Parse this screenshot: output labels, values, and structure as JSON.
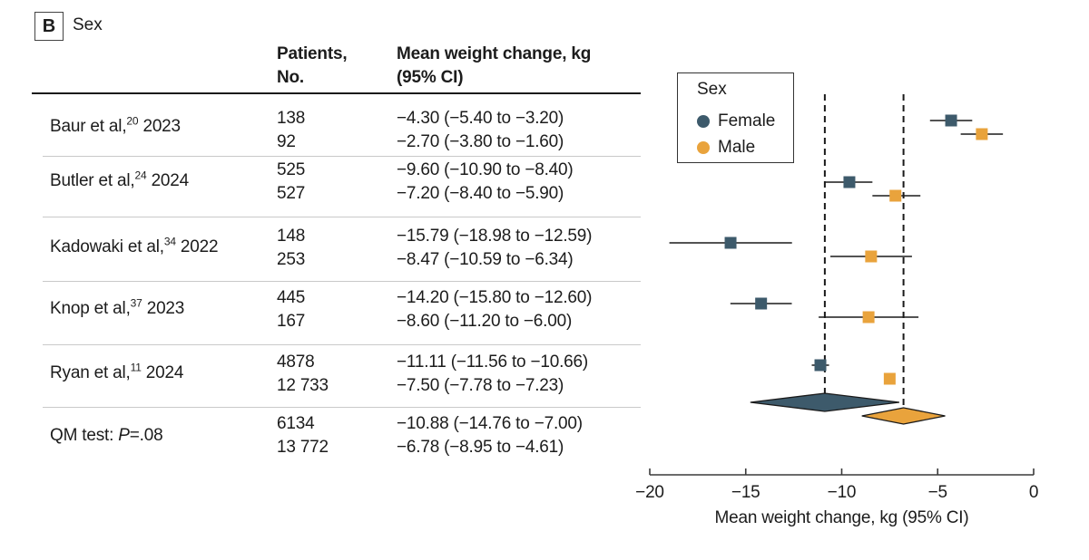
{
  "panel": {
    "label": "B",
    "title": "Sex"
  },
  "table": {
    "headers": {
      "patients_line1": "Patients,",
      "patients_line2": "No.",
      "effect_line1": "Mean weight change, kg",
      "effect_line2": "(95% CI)"
    },
    "rows": [
      {
        "study_pre": "Baur et al,",
        "study_ref": "20",
        "study_year": "2023",
        "female_n": "138",
        "female_ci": "−4.30 (−5.40 to −3.20)",
        "male_n": "92",
        "male_ci": "−2.70 (−3.80 to −1.60)"
      },
      {
        "study_pre": "Butler et al,",
        "study_ref": "24",
        "study_year": "2024",
        "female_n": "525",
        "female_ci": "−9.60 (−10.90 to −8.40)",
        "male_n": "527",
        "male_ci": "−7.20 (−8.40 to −5.90)"
      },
      {
        "study_pre": "Kadowaki et al,",
        "study_ref": "34",
        "study_year": "2022",
        "female_n": "148",
        "female_ci": "−15.79 (−18.98 to −12.59)",
        "male_n": "253",
        "male_ci": "−8.47 (−10.59 to −6.34)"
      },
      {
        "study_pre": "Knop et al,",
        "study_ref": "37",
        "study_year": "2023",
        "female_n": "445",
        "female_ci": "−14.20 (−15.80 to −12.60)",
        "male_n": "167",
        "male_ci": "−8.60 (−11.20 to −6.00)"
      },
      {
        "study_pre": "Ryan et al,",
        "study_ref": "11",
        "study_year": "2024",
        "female_n": "4878",
        "female_ci": "−11.11 (−11.56 to −10.66)",
        "male_n": "12 733",
        "male_ci": "−7.50 (−7.78 to −7.23)"
      }
    ],
    "summary_row": {
      "label_pre": "QM test: ",
      "label_p": "P",
      "label_post": "=.08",
      "female_n": "6134",
      "female_ci": "−10.88 (−14.76 to −7.00)",
      "male_n": "13 772",
      "male_ci": "−6.78 (−8.95 to −4.61)"
    }
  },
  "chart_data": {
    "type": "forest",
    "title": "Sex",
    "xlabel": "Mean weight change, kg (95% CI)",
    "xlim": [
      -20,
      0
    ],
    "xticks": [
      -20,
      -15,
      -10,
      -5,
      0
    ],
    "legend": {
      "title": "Sex",
      "position": "top-left",
      "entries": [
        {
          "label": "Female",
          "color": "#3d5a6b"
        },
        {
          "label": "Male",
          "color": "#e9a33c"
        }
      ]
    },
    "series": [
      {
        "study": "Baur et al, 2023",
        "female": {
          "mean": -4.3,
          "lo": -5.4,
          "hi": -3.2
        },
        "male": {
          "mean": -2.7,
          "lo": -3.8,
          "hi": -1.6
        }
      },
      {
        "study": "Butler et al, 2024",
        "female": {
          "mean": -9.6,
          "lo": -10.9,
          "hi": -8.4
        },
        "male": {
          "mean": -7.2,
          "lo": -8.4,
          "hi": -5.9
        }
      },
      {
        "study": "Kadowaki et al, 2022",
        "female": {
          "mean": -15.79,
          "lo": -18.98,
          "hi": -12.59
        },
        "male": {
          "mean": -8.47,
          "lo": -10.59,
          "hi": -6.34
        }
      },
      {
        "study": "Knop et al, 2023",
        "female": {
          "mean": -14.2,
          "lo": -15.8,
          "hi": -12.6
        },
        "male": {
          "mean": -8.6,
          "lo": -11.2,
          "hi": -6.0
        }
      },
      {
        "study": "Ryan et al, 2024",
        "female": {
          "mean": -11.11,
          "lo": -11.56,
          "hi": -10.66
        },
        "male": {
          "mean": -7.5,
          "lo": -7.78,
          "hi": -7.23
        }
      }
    ],
    "summaries": [
      {
        "group": "Female",
        "mean": -10.88,
        "lo": -14.76,
        "hi": -7.0
      },
      {
        "group": "Male",
        "mean": -6.78,
        "lo": -8.95,
        "hi": -4.61
      }
    ],
    "qm_test": "QM test: P=.08"
  }
}
